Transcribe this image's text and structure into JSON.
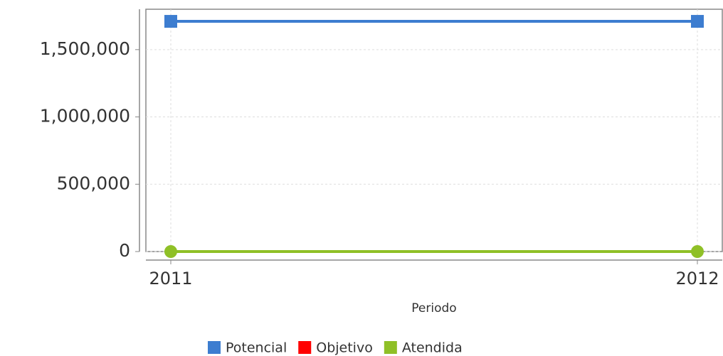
{
  "chart_data": {
    "type": "line",
    "x_label": "Periodo",
    "categories": [
      "2011",
      "2012"
    ],
    "series": [
      {
        "name": "Potencial",
        "color": "#3d7dd0",
        "marker": "square",
        "values": [
          1710000,
          1710000
        ]
      },
      {
        "name": "Objetivo",
        "color": "#ff0000",
        "marker": "diamond",
        "values": [
          0,
          0
        ]
      },
      {
        "name": "Atendida",
        "color": "#8fc027",
        "marker": "circle",
        "values": [
          0,
          0
        ]
      }
    ],
    "ylim": [
      0,
      1800000
    ],
    "yticks": [
      0,
      {
        "value": 500000,
        "label": "500,000"
      },
      {
        "value": 1000000,
        "label": "1,000,000"
      },
      {
        "value": 1500000,
        "label": "1,500,000"
      }
    ],
    "grid": true,
    "legend": "bottom"
  }
}
